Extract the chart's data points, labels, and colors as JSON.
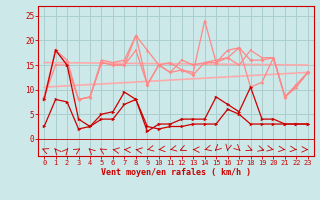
{
  "x": [
    0,
    1,
    2,
    3,
    4,
    5,
    6,
    7,
    8,
    9,
    10,
    11,
    12,
    13,
    14,
    15,
    16,
    17,
    18,
    19,
    20,
    21,
    22,
    23
  ],
  "line_dark1": [
    2.5,
    8,
    7.5,
    2,
    2.5,
    4,
    4,
    7,
    8,
    2.5,
    2,
    2.5,
    2.5,
    3,
    3,
    3,
    6,
    5,
    3,
    3,
    3,
    3,
    3,
    3
  ],
  "line_dark2": [
    8,
    18,
    15,
    4,
    2.5,
    5,
    5.5,
    9.5,
    8,
    1.5,
    3,
    3,
    4,
    4,
    4,
    8.5,
    7,
    5.5,
    10.5,
    4,
    4,
    3,
    3,
    3
  ],
  "line_pink1": [
    8.5,
    18,
    15,
    8,
    8.5,
    15.5,
    15,
    15,
    21,
    11,
    15,
    13.5,
    14,
    13,
    15.5,
    15.5,
    16.5,
    18.5,
    16,
    16,
    16.5,
    8.5,
    11,
    13.5
  ],
  "line_pink2": [
    8.5,
    15,
    15,
    8,
    8.5,
    15.5,
    15,
    15,
    18,
    11,
    15,
    13.5,
    16,
    15,
    15.5,
    16,
    16.5,
    15,
    18,
    16.5,
    16.5,
    8.5,
    11,
    13.5
  ],
  "line_pink3": [
    8,
    18,
    16,
    8,
    8.5,
    16,
    15.5,
    16,
    21,
    18,
    15,
    15.5,
    14,
    13.5,
    24,
    15.5,
    18,
    18.5,
    10.5,
    11.5,
    16.5,
    8.5,
    10.5,
    13.5
  ],
  "trend1_x": [
    0,
    23
  ],
  "trend1_y": [
    15.5,
    15.0
  ],
  "trend2_x": [
    0,
    23
  ],
  "trend2_y": [
    10.5,
    13.5
  ],
  "arrow_angles": [
    225,
    200,
    160,
    145,
    205,
    215,
    250,
    265,
    250,
    295,
    285,
    295,
    315,
    270,
    300,
    335,
    355,
    25,
    45,
    55,
    65,
    75,
    75,
    85
  ],
  "bg_color": "#cce8e8",
  "grid_color": "#aacece",
  "dark_color": "#cc0000",
  "pink_color": "#ff8888",
  "trend_color": "#ffaaaa",
  "axis_color": "#cc0000",
  "xlabel": "Vent moyen/en rafales ( km/h )",
  "yticks": [
    0,
    5,
    10,
    15,
    20,
    25
  ],
  "ylim": [
    -3.5,
    27
  ],
  "xlim": [
    -0.5,
    23.5
  ]
}
